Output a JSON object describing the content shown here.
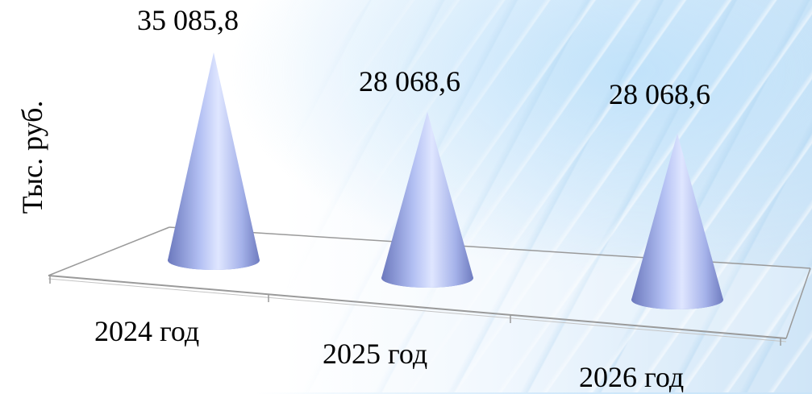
{
  "chart_data": {
    "type": "bar",
    "shape": "cone",
    "categories": [
      "2024 год",
      "2025 год",
      "2026 год"
    ],
    "values": [
      35085.8,
      28068.6,
      28068.6
    ],
    "value_labels": [
      "35 085,8",
      "28 068,6",
      "28 068,6"
    ],
    "ylabel": "Тыс. руб.",
    "xlabel": "",
    "grid": false,
    "legend": false,
    "colors": {
      "cone_light": "#dde4ff",
      "cone_mid": "#a3b2ee",
      "cone_dark": "#5e6cb0",
      "floor_line": "#9a9a9a"
    }
  }
}
